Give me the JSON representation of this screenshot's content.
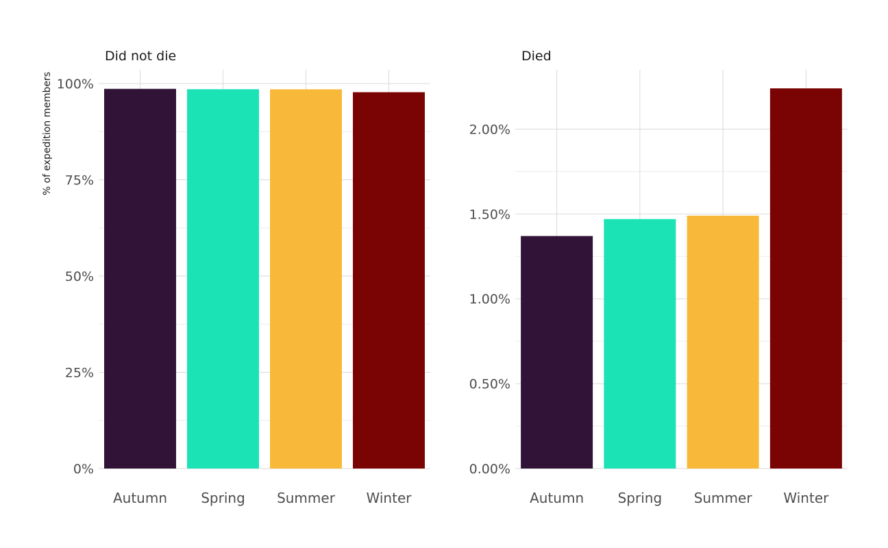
{
  "chart_data": [
    {
      "type": "bar",
      "title": "Did not die",
      "ylabel": "% of expedition members",
      "categories": [
        "Autumn",
        "Spring",
        "Summer",
        "Winter"
      ],
      "values": [
        0.9863,
        0.9853,
        0.9851,
        0.9776
      ],
      "ylim": [
        0,
        1.0
      ],
      "yticks": [
        0,
        0.25,
        0.5,
        0.75,
        1.0
      ],
      "ytick_labels": [
        "0%",
        "25%",
        "50%",
        "75%",
        "100%"
      ],
      "colors": [
        "#311337",
        "#1ce3b6",
        "#f8b93b",
        "#7a0403"
      ],
      "grid": true
    },
    {
      "type": "bar",
      "title": "Died",
      "ylabel": "",
      "categories": [
        "Autumn",
        "Spring",
        "Summer",
        "Winter"
      ],
      "values": [
        0.0137,
        0.0147,
        0.0149,
        0.0224
      ],
      "ylim": [
        0,
        0.0224
      ],
      "yticks": [
        0,
        0.005,
        0.01,
        0.015,
        0.02
      ],
      "ytick_labels": [
        "0.00%",
        "0.50%",
        "1.00%",
        "1.50%",
        "2.00%"
      ],
      "colors": [
        "#311337",
        "#1ce3b6",
        "#f8b93b",
        "#7a0403"
      ],
      "grid": true
    }
  ]
}
